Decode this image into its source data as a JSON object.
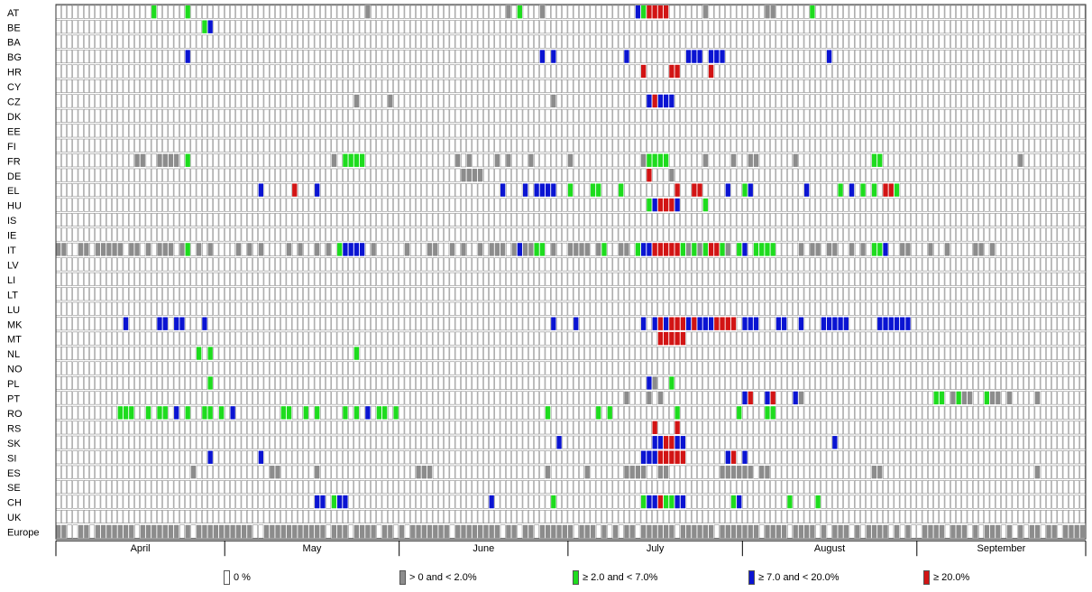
{
  "chart_data": {
    "type": "heatmap",
    "rows": [
      "AT",
      "BE",
      "BA",
      "BG",
      "HR",
      "CY",
      "CZ",
      "DK",
      "EE",
      "FI",
      "FR",
      "DE",
      "EL",
      "HU",
      "IS",
      "IE",
      "IT",
      "LV",
      "LI",
      "LT",
      "LU",
      "MK",
      "MT",
      "NL",
      "NO",
      "PL",
      "PT",
      "RO",
      "RS",
      "SK",
      "SI",
      "ES",
      "SE",
      "CH",
      "UK",
      "Europe"
    ],
    "months": [
      "April",
      "May",
      "June",
      "July",
      "August",
      "September"
    ],
    "days_per_month": [
      30,
      31,
      30,
      31,
      31,
      30
    ],
    "categories": [
      {
        "key": 0,
        "label": "0 %",
        "color": "#ffffff"
      },
      {
        "key": 1,
        "label": "> 0 and < 2.0%",
        "color": "#8c8c8c"
      },
      {
        "key": 2,
        "label": "≥ 2.0 and < 7.0%",
        "color": "#1edc1e"
      },
      {
        "key": 3,
        "label": "≥ 7.0 and < 20.0%",
        "color": "#0a14d2"
      },
      {
        "key": 4,
        "label": "≥ 20.0%",
        "color": "#d21414"
      }
    ],
    "nonzero_cells": {
      "AT": [
        [
          17,
          2
        ],
        [
          23,
          2
        ],
        [
          55,
          1
        ],
        [
          80,
          1
        ],
        [
          82,
          2
        ],
        [
          86,
          1
        ],
        [
          103,
          3
        ],
        [
          104,
          2
        ],
        [
          105,
          4
        ],
        [
          106,
          4
        ],
        [
          107,
          4
        ],
        [
          108,
          4
        ],
        [
          115,
          1
        ],
        [
          126,
          1
        ],
        [
          127,
          1
        ],
        [
          134,
          2
        ]
      ],
      "BE": [
        [
          26,
          2
        ],
        [
          27,
          3
        ]
      ],
      "BG": [
        [
          23,
          3
        ],
        [
          86,
          3
        ],
        [
          88,
          3
        ],
        [
          101,
          3
        ],
        [
          112,
          3
        ],
        [
          113,
          3
        ],
        [
          114,
          3
        ],
        [
          116,
          3
        ],
        [
          117,
          3
        ],
        [
          118,
          3
        ],
        [
          137,
          3
        ]
      ],
      "HR": [
        [
          104,
          4
        ],
        [
          109,
          4
        ],
        [
          110,
          4
        ],
        [
          116,
          4
        ]
      ],
      "CZ": [
        [
          53,
          1
        ],
        [
          59,
          1
        ],
        [
          88,
          1
        ],
        [
          105,
          3
        ],
        [
          106,
          4
        ],
        [
          107,
          3
        ],
        [
          108,
          3
        ],
        [
          109,
          3
        ]
      ],
      "FR": [
        [
          14,
          1
        ],
        [
          15,
          1
        ],
        [
          18,
          1
        ],
        [
          19,
          1
        ],
        [
          20,
          1
        ],
        [
          21,
          1
        ],
        [
          23,
          2
        ],
        [
          49,
          1
        ],
        [
          51,
          2
        ],
        [
          52,
          2
        ],
        [
          53,
          2
        ],
        [
          54,
          2
        ],
        [
          71,
          1
        ],
        [
          73,
          1
        ],
        [
          78,
          1
        ],
        [
          80,
          1
        ],
        [
          84,
          1
        ],
        [
          91,
          1
        ],
        [
          104,
          1
        ],
        [
          105,
          2
        ],
        [
          106,
          2
        ],
        [
          107,
          2
        ],
        [
          108,
          2
        ],
        [
          115,
          1
        ],
        [
          120,
          1
        ],
        [
          123,
          1
        ],
        [
          124,
          1
        ],
        [
          131,
          1
        ],
        [
          145,
          2
        ],
        [
          146,
          2
        ],
        [
          171,
          1
        ]
      ],
      "DE": [
        [
          72,
          1
        ],
        [
          73,
          1
        ],
        [
          74,
          1
        ],
        [
          75,
          1
        ],
        [
          105,
          4
        ],
        [
          109,
          1
        ]
      ],
      "EL": [
        [
          36,
          3
        ],
        [
          42,
          4
        ],
        [
          46,
          3
        ],
        [
          79,
          3
        ],
        [
          83,
          3
        ],
        [
          85,
          3
        ],
        [
          86,
          3
        ],
        [
          87,
          3
        ],
        [
          88,
          3
        ],
        [
          91,
          2
        ],
        [
          95,
          2
        ],
        [
          96,
          2
        ],
        [
          100,
          2
        ],
        [
          110,
          4
        ],
        [
          113,
          4
        ],
        [
          114,
          4
        ],
        [
          119,
          3
        ],
        [
          122,
          2
        ],
        [
          123,
          3
        ],
        [
          133,
          3
        ],
        [
          139,
          2
        ],
        [
          141,
          3
        ],
        [
          143,
          2
        ],
        [
          145,
          2
        ],
        [
          147,
          4
        ],
        [
          148,
          4
        ],
        [
          149,
          2
        ]
      ],
      "HU": [
        [
          105,
          2
        ],
        [
          106,
          3
        ],
        [
          107,
          4
        ],
        [
          108,
          4
        ],
        [
          109,
          4
        ],
        [
          110,
          3
        ],
        [
          115,
          2
        ]
      ],
      "IT": [
        [
          0,
          1
        ],
        [
          1,
          1
        ],
        [
          4,
          1
        ],
        [
          5,
          1
        ],
        [
          7,
          1
        ],
        [
          8,
          1
        ],
        [
          9,
          1
        ],
        [
          10,
          1
        ],
        [
          11,
          1
        ],
        [
          13,
          1
        ],
        [
          14,
          1
        ],
        [
          16,
          1
        ],
        [
          18,
          1
        ],
        [
          19,
          1
        ],
        [
          20,
          1
        ],
        [
          22,
          1
        ],
        [
          23,
          2
        ],
        [
          25,
          1
        ],
        [
          27,
          1
        ],
        [
          32,
          1
        ],
        [
          34,
          1
        ],
        [
          36,
          1
        ],
        [
          41,
          1
        ],
        [
          43,
          1
        ],
        [
          46,
          1
        ],
        [
          48,
          1
        ],
        [
          50,
          2
        ],
        [
          51,
          3
        ],
        [
          52,
          3
        ],
        [
          53,
          3
        ],
        [
          54,
          3
        ],
        [
          56,
          1
        ],
        [
          62,
          1
        ],
        [
          66,
          1
        ],
        [
          67,
          1
        ],
        [
          70,
          1
        ],
        [
          72,
          1
        ],
        [
          75,
          1
        ],
        [
          77,
          1
        ],
        [
          78,
          1
        ],
        [
          79,
          1
        ],
        [
          81,
          1
        ],
        [
          82,
          3
        ],
        [
          83,
          1
        ],
        [
          84,
          1
        ],
        [
          85,
          2
        ],
        [
          86,
          2
        ],
        [
          88,
          1
        ],
        [
          91,
          1
        ],
        [
          92,
          1
        ],
        [
          93,
          1
        ],
        [
          94,
          1
        ],
        [
          96,
          1
        ],
        [
          97,
          2
        ],
        [
          100,
          1
        ],
        [
          101,
          1
        ],
        [
          103,
          2
        ],
        [
          104,
          3
        ],
        [
          105,
          3
        ],
        [
          106,
          4
        ],
        [
          107,
          4
        ],
        [
          108,
          4
        ],
        [
          109,
          4
        ],
        [
          110,
          4
        ],
        [
          111,
          2
        ],
        [
          112,
          1
        ],
        [
          113,
          2
        ],
        [
          114,
          1
        ],
        [
          115,
          2
        ],
        [
          116,
          4
        ],
        [
          117,
          4
        ],
        [
          118,
          2
        ],
        [
          119,
          1
        ],
        [
          121,
          2
        ],
        [
          122,
          3
        ],
        [
          124,
          2
        ],
        [
          125,
          2
        ],
        [
          126,
          2
        ],
        [
          127,
          2
        ],
        [
          132,
          1
        ],
        [
          134,
          1
        ],
        [
          135,
          1
        ],
        [
          137,
          1
        ],
        [
          138,
          1
        ],
        [
          141,
          1
        ],
        [
          143,
          1
        ],
        [
          145,
          2
        ],
        [
          146,
          2
        ],
        [
          147,
          3
        ],
        [
          150,
          1
        ],
        [
          151,
          1
        ],
        [
          155,
          1
        ],
        [
          158,
          1
        ],
        [
          163,
          1
        ],
        [
          164,
          1
        ],
        [
          166,
          1
        ]
      ],
      "MK": [
        [
          12,
          3
        ],
        [
          18,
          3
        ],
        [
          19,
          3
        ],
        [
          21,
          3
        ],
        [
          22,
          3
        ],
        [
          26,
          3
        ],
        [
          88,
          3
        ],
        [
          92,
          3
        ],
        [
          104,
          3
        ],
        [
          106,
          3
        ],
        [
          107,
          4
        ],
        [
          108,
          3
        ],
        [
          109,
          4
        ],
        [
          110,
          4
        ],
        [
          111,
          4
        ],
        [
          112,
          3
        ],
        [
          113,
          4
        ],
        [
          114,
          3
        ],
        [
          115,
          3
        ],
        [
          116,
          3
        ],
        [
          117,
          4
        ],
        [
          118,
          4
        ],
        [
          119,
          4
        ],
        [
          120,
          4
        ],
        [
          122,
          3
        ],
        [
          123,
          3
        ],
        [
          124,
          3
        ],
        [
          128,
          3
        ],
        [
          129,
          3
        ],
        [
          132,
          3
        ],
        [
          136,
          3
        ],
        [
          137,
          3
        ],
        [
          138,
          3
        ],
        [
          139,
          3
        ],
        [
          140,
          3
        ],
        [
          146,
          3
        ],
        [
          147,
          3
        ],
        [
          148,
          3
        ],
        [
          149,
          3
        ],
        [
          150,
          3
        ],
        [
          151,
          3
        ]
      ],
      "MT": [
        [
          107,
          4
        ],
        [
          108,
          4
        ],
        [
          109,
          4
        ],
        [
          110,
          4
        ],
        [
          111,
          4
        ]
      ],
      "NL": [
        [
          25,
          2
        ],
        [
          27,
          2
        ],
        [
          53,
          2
        ]
      ],
      "PL": [
        [
          27,
          2
        ],
        [
          105,
          3
        ],
        [
          106,
          1
        ],
        [
          109,
          2
        ]
      ],
      "PT": [
        [
          101,
          1
        ],
        [
          105,
          1
        ],
        [
          107,
          1
        ],
        [
          122,
          3
        ],
        [
          123,
          4
        ],
        [
          126,
          3
        ],
        [
          127,
          4
        ],
        [
          131,
          3
        ],
        [
          132,
          1
        ],
        [
          156,
          2
        ],
        [
          157,
          2
        ],
        [
          159,
          1
        ],
        [
          160,
          2
        ],
        [
          161,
          1
        ],
        [
          162,
          1
        ],
        [
          165,
          2
        ],
        [
          166,
          1
        ],
        [
          167,
          1
        ],
        [
          169,
          1
        ],
        [
          174,
          1
        ]
      ],
      "RO": [
        [
          11,
          2
        ],
        [
          12,
          2
        ],
        [
          13,
          2
        ],
        [
          16,
          2
        ],
        [
          18,
          2
        ],
        [
          19,
          2
        ],
        [
          21,
          3
        ],
        [
          23,
          2
        ],
        [
          26,
          2
        ],
        [
          27,
          2
        ],
        [
          29,
          2
        ],
        [
          31,
          3
        ],
        [
          40,
          2
        ],
        [
          41,
          2
        ],
        [
          44,
          2
        ],
        [
          46,
          2
        ],
        [
          51,
          2
        ],
        [
          53,
          2
        ],
        [
          55,
          3
        ],
        [
          57,
          2
        ],
        [
          58,
          2
        ],
        [
          60,
          2
        ],
        [
          87,
          2
        ],
        [
          96,
          2
        ],
        [
          98,
          2
        ],
        [
          110,
          2
        ],
        [
          121,
          2
        ],
        [
          126,
          2
        ],
        [
          127,
          2
        ]
      ],
      "RS": [
        [
          106,
          4
        ],
        [
          110,
          4
        ]
      ],
      "SK": [
        [
          89,
          3
        ],
        [
          106,
          3
        ],
        [
          107,
          3
        ],
        [
          108,
          4
        ],
        [
          109,
          4
        ],
        [
          110,
          3
        ],
        [
          111,
          3
        ],
        [
          138,
          3
        ]
      ],
      "SI": [
        [
          27,
          3
        ],
        [
          36,
          3
        ],
        [
          104,
          3
        ],
        [
          105,
          3
        ],
        [
          106,
          3
        ],
        [
          107,
          4
        ],
        [
          108,
          4
        ],
        [
          109,
          4
        ],
        [
          110,
          4
        ],
        [
          111,
          4
        ],
        [
          119,
          3
        ],
        [
          120,
          4
        ],
        [
          122,
          3
        ]
      ],
      "ES": [
        [
          24,
          1
        ],
        [
          38,
          1
        ],
        [
          39,
          1
        ],
        [
          46,
          1
        ],
        [
          64,
          1
        ],
        [
          65,
          1
        ],
        [
          66,
          1
        ],
        [
          87,
          1
        ],
        [
          94,
          1
        ],
        [
          101,
          1
        ],
        [
          102,
          1
        ],
        [
          103,
          1
        ],
        [
          104,
          1
        ],
        [
          107,
          1
        ],
        [
          108,
          1
        ],
        [
          118,
          1
        ],
        [
          119,
          1
        ],
        [
          120,
          1
        ],
        [
          121,
          1
        ],
        [
          122,
          1
        ],
        [
          123,
          1
        ],
        [
          125,
          1
        ],
        [
          126,
          1
        ],
        [
          145,
          1
        ],
        [
          146,
          1
        ],
        [
          174,
          1
        ]
      ],
      "CH": [
        [
          46,
          3
        ],
        [
          47,
          3
        ],
        [
          49,
          2
        ],
        [
          50,
          3
        ],
        [
          51,
          3
        ],
        [
          77,
          3
        ],
        [
          88,
          2
        ],
        [
          104,
          2
        ],
        [
          105,
          3
        ],
        [
          106,
          3
        ],
        [
          107,
          4
        ],
        [
          108,
          2
        ],
        [
          109,
          2
        ],
        [
          110,
          3
        ],
        [
          111,
          3
        ],
        [
          120,
          2
        ],
        [
          121,
          3
        ],
        [
          130,
          2
        ],
        [
          135,
          2
        ]
      ]
    },
    "europe_row_pattern": "mostly > 0 and < 2.0% with scattered 0 % days"
  }
}
